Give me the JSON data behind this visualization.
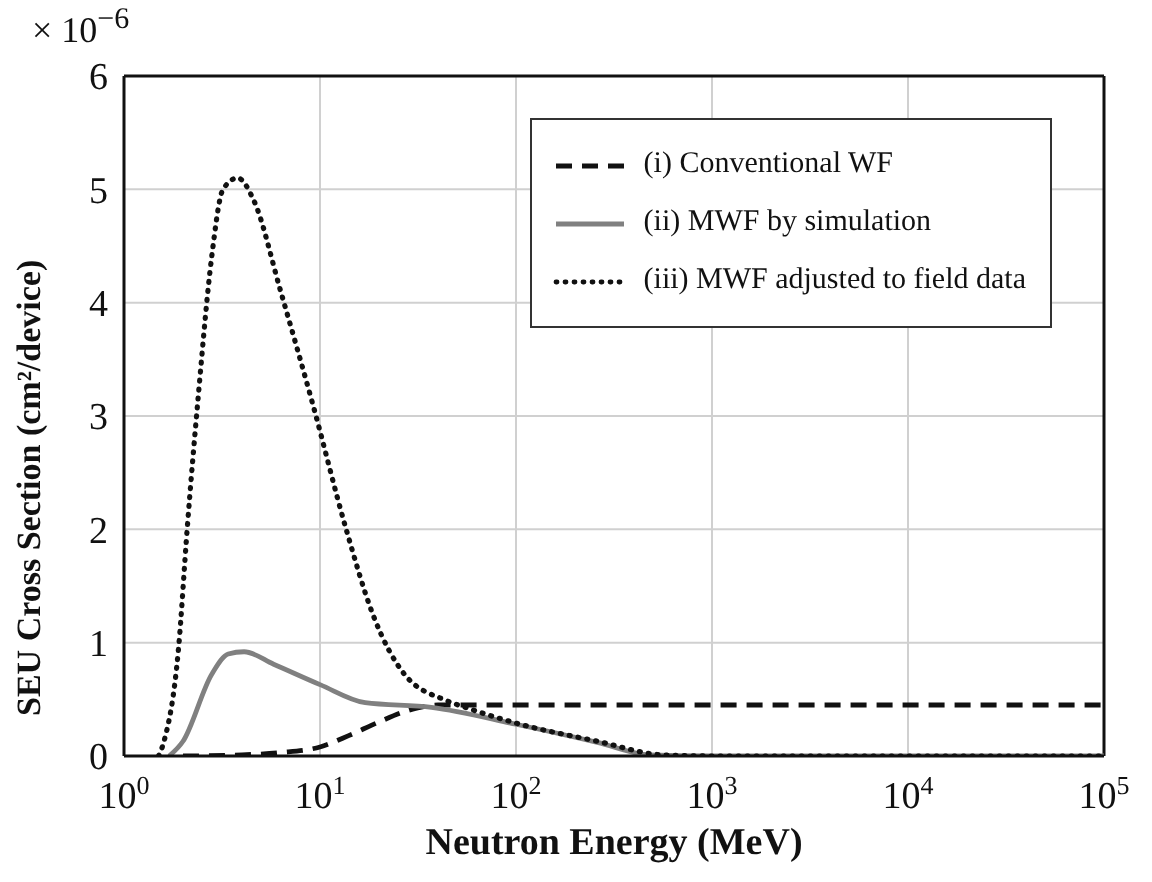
{
  "chart_data": {
    "type": "line",
    "xlabel": "Neutron Energy (MeV)",
    "ylabel": "SEU Cross Section (cm²/device)",
    "annotations": [
      "× 10$^{−6}$"
    ],
    "log": "x",
    "grid": true,
    "legend": "top right",
    "marker": "none",
    "xlim": [
      1,
      100000
    ],
    "xticks": [
      {
        "value": 1,
        "label": "10$^{0}$"
      },
      {
        "value": 10,
        "label": "10$^{1}$"
      },
      {
        "value": 100,
        "label": "10$^{2}$"
      },
      {
        "value": 1000,
        "label": "10$^{3}$"
      },
      {
        "value": 10000,
        "label": "10$^{4}$"
      },
      {
        "value": 100000,
        "label": "10$^{5}$"
      }
    ],
    "ylim": [
      0,
      6
    ],
    "yticks": [
      0,
      1,
      2,
      3,
      4,
      5,
      6
    ],
    "series": [
      {
        "name": "(i) Conventional WF",
        "color": "#111111",
        "line_style": "dashed",
        "x": [
          2,
          4,
          6.3,
          10,
          14,
          20,
          28,
          40,
          100000
        ],
        "values": [
          0,
          0.01,
          0.03,
          0.08,
          0.18,
          0.3,
          0.4,
          0.45,
          0.45
        ]
      },
      {
        "name": "(ii) MWF by simulation",
        "color": "#808080",
        "line_style": "solid",
        "x": [
          1.7,
          2,
          2.8,
          3.4,
          4.1,
          5.8,
          10,
          17,
          37,
          100,
          260,
          480,
          1000,
          100000
        ],
        "values": [
          0,
          0.13,
          0.72,
          0.9,
          0.92,
          0.81,
          0.63,
          0.47,
          0.43,
          0.28,
          0.12,
          0.01,
          0,
          0
        ]
      },
      {
        "name": "(iii) MWF adjusted to field data",
        "color": "#111111",
        "line_style": "dotted",
        "x": [
          1.5,
          1.6,
          1.9,
          2.1,
          2.4,
          2.8,
          3.2,
          3.8,
          4.6,
          6.3,
          9.2,
          13.6,
          18.6,
          27,
          44,
          55,
          100,
          260,
          560,
          1000,
          100000
        ],
        "values": [
          0,
          0.13,
          0.96,
          2.0,
          3.2,
          4.4,
          5.0,
          5.1,
          4.9,
          4.1,
          3.1,
          2.0,
          1.25,
          0.72,
          0.49,
          0.43,
          0.29,
          0.13,
          0.01,
          0,
          0
        ]
      }
    ]
  }
}
